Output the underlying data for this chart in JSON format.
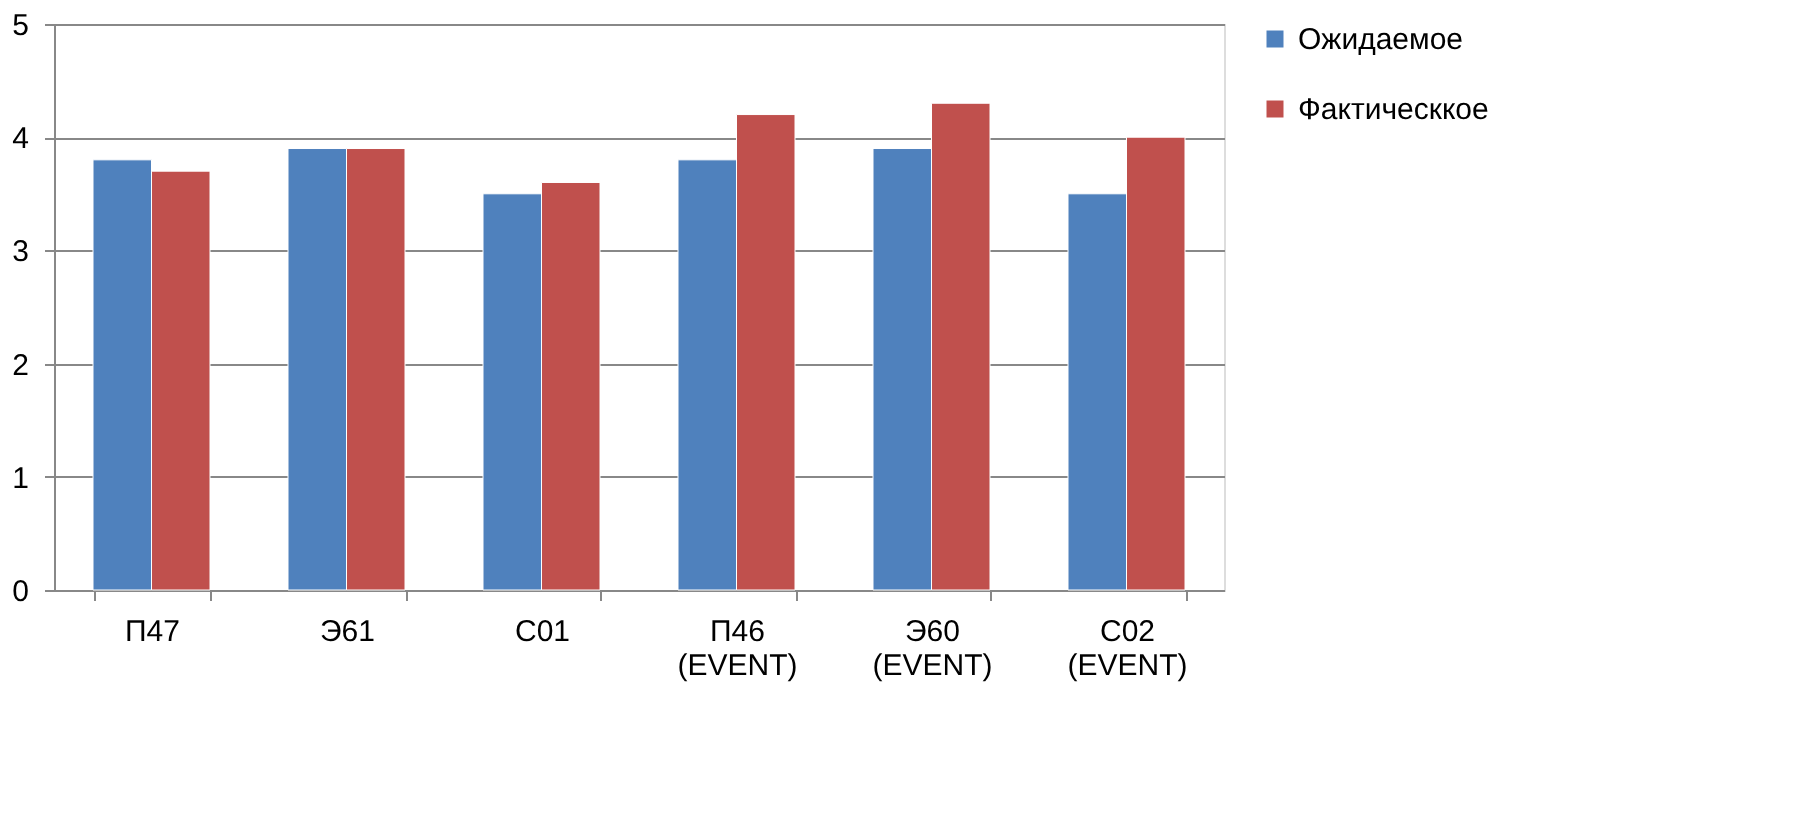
{
  "chart_data": {
    "type": "bar",
    "categories": [
      "П47",
      "Э61",
      "С01",
      "П46 (EVENT)",
      "Э60 (EVENT)",
      "С02 (EVENT)"
    ],
    "series": [
      {
        "name": "Ожидаемое",
        "color": "#4f81bd",
        "values": [
          3.8,
          3.9,
          3.5,
          3.8,
          3.9,
          3.5
        ]
      },
      {
        "name": "Фактическкое",
        "color": "#c0504d",
        "values": [
          3.7,
          3.9,
          3.6,
          4.2,
          4.3,
          4.0
        ]
      }
    ],
    "ylim": [
      0,
      5
    ],
    "yticks": [
      0,
      1,
      2,
      3,
      4,
      5
    ],
    "grid": "y",
    "legend": "right"
  }
}
